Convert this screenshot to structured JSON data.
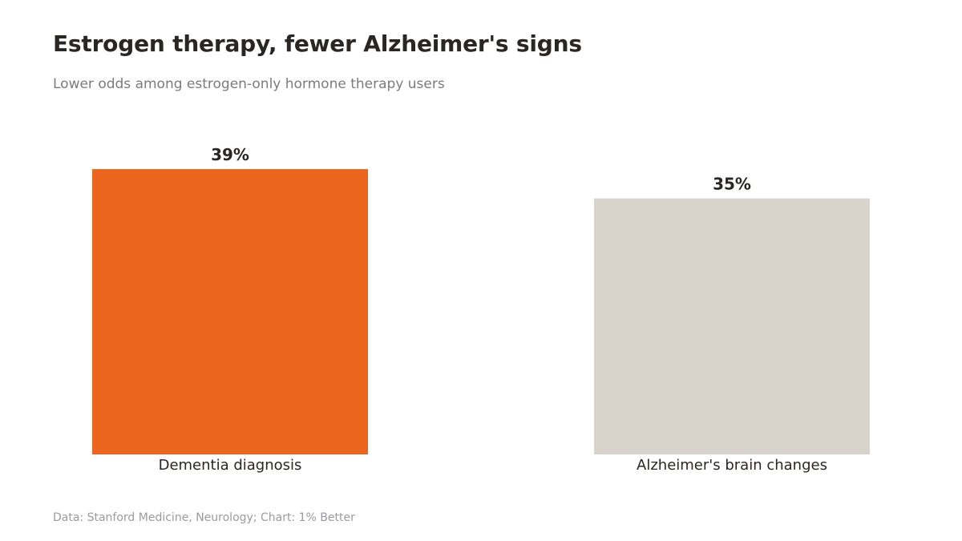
{
  "title": "Estrogen therapy, fewer Alzheimer's signs",
  "subtitle": "Lower odds among estrogen-only hormone therapy users",
  "source": "Data: Stanford Medicine, Neurology; Chart: 1% Better",
  "colors": {
    "highlight": "#ec651f",
    "muted": "#d9d4cb",
    "label": "#2a2623"
  },
  "chart_data": {
    "type": "bar",
    "categories": [
      "Dementia diagnosis",
      "Alzheimer's brain changes"
    ],
    "values": [
      39,
      35
    ],
    "value_labels": [
      "39%",
      "35%"
    ],
    "bar_colors": [
      "#ec651f",
      "#d9d4cb"
    ],
    "unit": "%",
    "ylim": [
      0,
      39
    ],
    "grid": false,
    "legend": "none",
    "xlabel": "",
    "ylabel": ""
  }
}
